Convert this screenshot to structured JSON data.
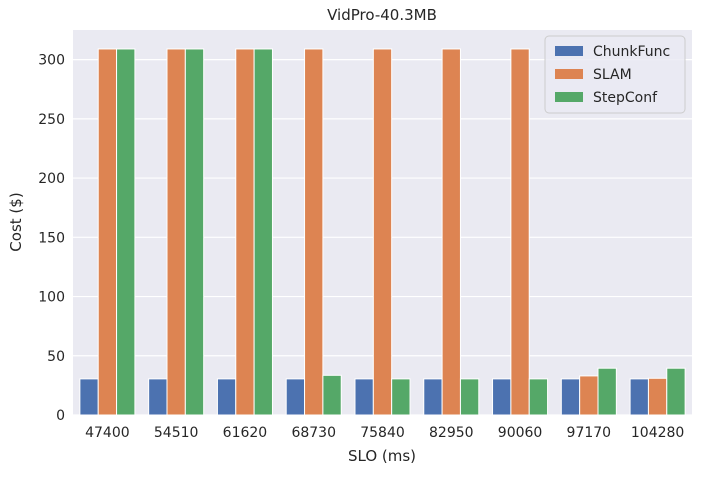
{
  "chart_data": {
    "type": "bar",
    "title": "VidPro-40.3MB",
    "xlabel": "SLO (ms)",
    "ylabel": "Cost ($)",
    "ylim": [
      0,
      325
    ],
    "yticks": [
      0,
      50,
      100,
      150,
      200,
      250,
      300
    ],
    "grid": true,
    "legend_position": "top-right",
    "categories": [
      "47400",
      "54510",
      "61620",
      "68730",
      "75840",
      "82950",
      "90060",
      "97170",
      "104280"
    ],
    "series": [
      {
        "name": "ChunkFunc",
        "color": "#4c72b0",
        "values": [
          30.5,
          30.5,
          30.5,
          30.5,
          30.5,
          30.5,
          30.5,
          30.5,
          30.5
        ]
      },
      {
        "name": "SLAM",
        "color": "#dd8452",
        "values": [
          309,
          309,
          309,
          309,
          309,
          309,
          309,
          33,
          31
        ]
      },
      {
        "name": "StepConf",
        "color": "#55a868",
        "values": [
          309,
          309,
          309,
          33.5,
          30.5,
          30.5,
          30.5,
          39.5,
          39.5
        ]
      }
    ],
    "background_color": "#eaeaf2",
    "grid_color": "#ffffff"
  }
}
